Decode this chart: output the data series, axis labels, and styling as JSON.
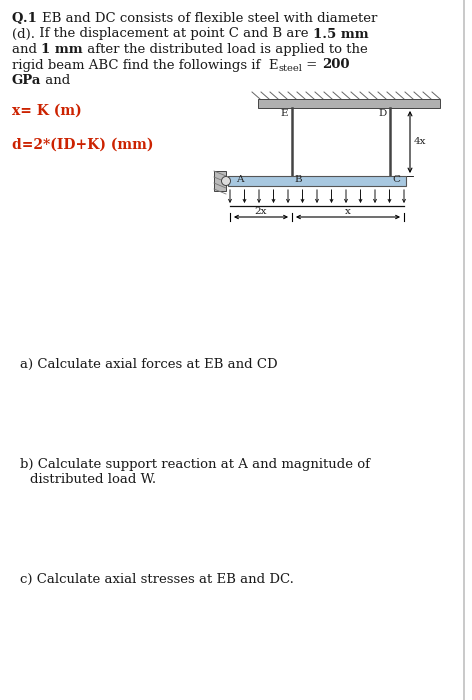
{
  "bg_color": "#ffffff",
  "text_color": "#1a1a1a",
  "red_color": "#cc2200",
  "diagram": {
    "ceiling_color": "#b0b0b0",
    "beam_color": "#a8c8e0",
    "rod_color": "#444444",
    "wall_fill": "#999999",
    "hatch_color": "#666666"
  },
  "para_lines": [
    {
      "segments": [
        {
          "text": "Q.1 ",
          "bold": true
        },
        {
          "text": "EB and DC consists of flexible steel with diameter",
          "bold": false
        }
      ]
    },
    {
      "segments": [
        {
          "text": "(d).",
          "bold": false
        },
        {
          "text": " If the displacement at point C and B are ",
          "bold": false
        },
        {
          "text": "1.5 mm",
          "bold": true
        }
      ]
    },
    {
      "segments": [
        {
          "text": "and ",
          "bold": false
        },
        {
          "text": "1 mm",
          "bold": true
        },
        {
          "text": " after the distributed load is applied to the",
          "bold": false
        }
      ]
    },
    {
      "segments": [
        {
          "text": "rigid beam ABC find the followings if  E",
          "bold": false
        },
        {
          "text": "steel",
          "bold": false,
          "sub": true
        },
        {
          "text": " = ",
          "bold": false
        },
        {
          "text": "200",
          "bold": true
        }
      ]
    },
    {
      "segments": [
        {
          "text": "GPa",
          "bold": true
        },
        {
          "text": " and",
          "bold": false
        }
      ]
    }
  ],
  "var_x": "x= K (m)",
  "var_d": "d=2*(ID+K) (mm)",
  "part_a": "a) Calculate axial forces at EB and CD",
  "part_b1": "b) Calculate support reaction at A and magnitude of",
  "part_b2": "   distributed load W.",
  "part_c": "c) Calculate axial stresses at EB and DC.",
  "label_E": "E",
  "label_D": "D",
  "label_A": "A",
  "label_B": "B",
  "label_C": "C",
  "label_4x": "4x",
  "label_2x": "2x",
  "label_x": "x"
}
